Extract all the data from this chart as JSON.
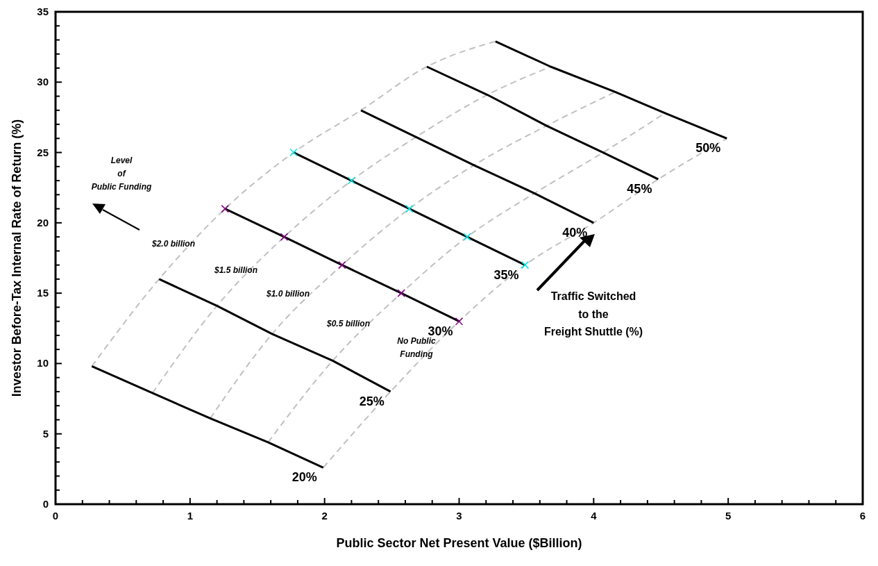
{
  "chart_data": {
    "type": "line",
    "xlabel": "Public Sector Net Present Value ($Billion)",
    "ylabel": "Investor Before-Tax Internal Rate of Return (%)",
    "xlim": [
      0,
      6
    ],
    "ylim": [
      0,
      35
    ],
    "xticks": [
      0,
      {
        "value": 0.2,
        "label": null
      },
      {
        "value": 0.4,
        "label": null
      },
      {
        "value": 0.6,
        "label": null
      },
      {
        "value": 0.8,
        "label": null
      },
      1,
      {
        "value": 1.2,
        "label": null
      },
      {
        "value": 1.4,
        "label": null
      },
      {
        "value": 1.6,
        "label": null
      },
      {
        "value": 1.8,
        "label": null
      },
      2,
      {
        "value": 2.2,
        "label": null
      },
      {
        "value": 2.4,
        "label": null
      },
      {
        "value": 2.6,
        "label": null
      },
      {
        "value": 2.8,
        "label": null
      },
      3,
      {
        "value": 3.2,
        "label": null
      },
      {
        "value": 3.4,
        "label": null
      },
      {
        "value": 3.6,
        "label": null
      },
      {
        "value": 3.8,
        "label": null
      },
      4,
      {
        "value": 4.2,
        "label": null
      },
      {
        "value": 4.4,
        "label": null
      },
      {
        "value": 4.6,
        "label": null
      },
      {
        "value": 4.8,
        "label": null
      },
      5,
      {
        "value": 5.2,
        "label": null
      },
      {
        "value": 5.4,
        "label": null
      },
      {
        "value": 5.6,
        "label": null
      },
      {
        "value": 5.8,
        "label": null
      },
      6
    ],
    "yticks": [
      0,
      {
        "value": 1,
        "label": null
      },
      {
        "value": 2,
        "label": null
      },
      {
        "value": 3,
        "label": null
      },
      {
        "value": 4,
        "label": null
      },
      5,
      {
        "value": 6,
        "label": null
      },
      {
        "value": 7,
        "label": null
      },
      {
        "value": 8,
        "label": null
      },
      {
        "value": 9,
        "label": null
      },
      10,
      {
        "value": 11,
        "label": null
      },
      {
        "value": 12,
        "label": null
      },
      {
        "value": 13,
        "label": null
      },
      {
        "value": 14,
        "label": null
      },
      15,
      {
        "value": 16,
        "label": null
      },
      {
        "value": 17,
        "label": null
      },
      {
        "value": 18,
        "label": null
      },
      {
        "value": 19,
        "label": null
      },
      20,
      {
        "value": 21,
        "label": null
      },
      {
        "value": 22,
        "label": null
      },
      {
        "value": 23,
        "label": null
      },
      {
        "value": 24,
        "label": null
      },
      25,
      {
        "value": 26,
        "label": null
      },
      {
        "value": 27,
        "label": null
      },
      {
        "value": 28,
        "label": null
      },
      {
        "value": 29,
        "label": null
      },
      30,
      {
        "value": 31,
        "label": null
      },
      {
        "value": 32,
        "label": null
      },
      {
        "value": 33,
        "label": null
      },
      {
        "value": 34,
        "label": null
      },
      35
    ],
    "grid": false,
    "line_style": "solid",
    "series": [
      {
        "name": "20%",
        "color": "#000000",
        "x": [
          0.27,
          0.72,
          1.15,
          1.58,
          1.99
        ],
        "values": [
          9.8,
          7.9,
          6.1,
          4.4,
          2.6
        ]
      },
      {
        "name": "25%",
        "color": "#000000",
        "x": [
          0.77,
          1.2,
          1.61,
          2.06,
          2.49
        ],
        "values": [
          16,
          14.1,
          12.1,
          10.2,
          8
        ]
      },
      {
        "name": "30%",
        "color": "#000000",
        "x": [
          1.26,
          1.7,
          2.13,
          2.57,
          3.0
        ],
        "values": [
          21,
          19,
          17,
          15,
          13
        ],
        "marker": "cross",
        "colors": [
          "#800080",
          "#800080",
          "#800080",
          "#800080",
          "#800080"
        ]
      },
      {
        "name": "35%",
        "color": "#000000",
        "x": [
          1.77,
          2.2,
          2.63,
          3.06,
          3.49
        ],
        "values": [
          25,
          23,
          21,
          19,
          17
        ],
        "marker": "cross",
        "colors": [
          "#00e5e5",
          "#00e5e5",
          "#00e5e5",
          "#00e5e5",
          "#00e5e5"
        ]
      },
      {
        "name": "40%",
        "color": "#000000",
        "x": [
          2.27,
          2.68,
          3.11,
          3.56,
          4.0
        ],
        "values": [
          28,
          26.1,
          24.1,
          22.1,
          20
        ]
      },
      {
        "name": "45%",
        "color": "#000000",
        "x": [
          2.76,
          3.21,
          3.65,
          4.07,
          4.48
        ],
        "values": [
          31.1,
          29.1,
          26.9,
          25,
          23.1
        ]
      },
      {
        "name": "50%",
        "color": "#000000",
        "x": [
          3.27,
          3.68,
          4.16,
          4.53,
          4.99
        ],
        "values": [
          32.9,
          31.1,
          29.3,
          27.8,
          26
        ]
      },
      {
        "color": "#c0c0c0",
        "line_style": "dashed",
        "x": [
          0.27,
          0.77,
          1.26,
          1.77,
          2.27,
          2.76,
          3.27
        ],
        "values": [
          9.8,
          16,
          21,
          25,
          28,
          31.1,
          32.9
        ]
      },
      {
        "color": "#c0c0c0",
        "line_style": "dashed",
        "x": [
          0.72,
          1.2,
          1.7,
          2.2,
          2.68,
          3.21,
          3.68
        ],
        "values": [
          7.9,
          14.1,
          19,
          23,
          26.1,
          29.1,
          31.1
        ]
      },
      {
        "color": "#c0c0c0",
        "line_style": "dashed",
        "x": [
          1.15,
          1.61,
          2.13,
          2.63,
          3.11,
          3.65,
          4.16
        ],
        "values": [
          6.1,
          12.1,
          17,
          21,
          24.1,
          26.9,
          29.3
        ]
      },
      {
        "color": "#c0c0c0",
        "line_style": "dashed",
        "x": [
          1.58,
          2.06,
          2.57,
          3.06,
          3.56,
          4.07,
          4.53
        ],
        "values": [
          4.4,
          10.2,
          15,
          19,
          22.1,
          25,
          27.8
        ]
      },
      {
        "color": "#c0c0c0",
        "line_style": "dashed",
        "x": [
          1.99,
          2.49,
          3.0,
          3.49,
          4.0,
          4.48,
          4.99
        ],
        "values": [
          2.6,
          8,
          13,
          17,
          20,
          23.1,
          26
        ]
      }
    ],
    "annotations": [
      "Level\nof\nPublic Funding",
      "$2.0 billion",
      "$1.5 billion",
      "$1.0 billion",
      "$0.5 billion",
      "No Public\nFunding",
      "Traffic Switched\nto the\nFreight Shuttle (%)"
    ]
  }
}
